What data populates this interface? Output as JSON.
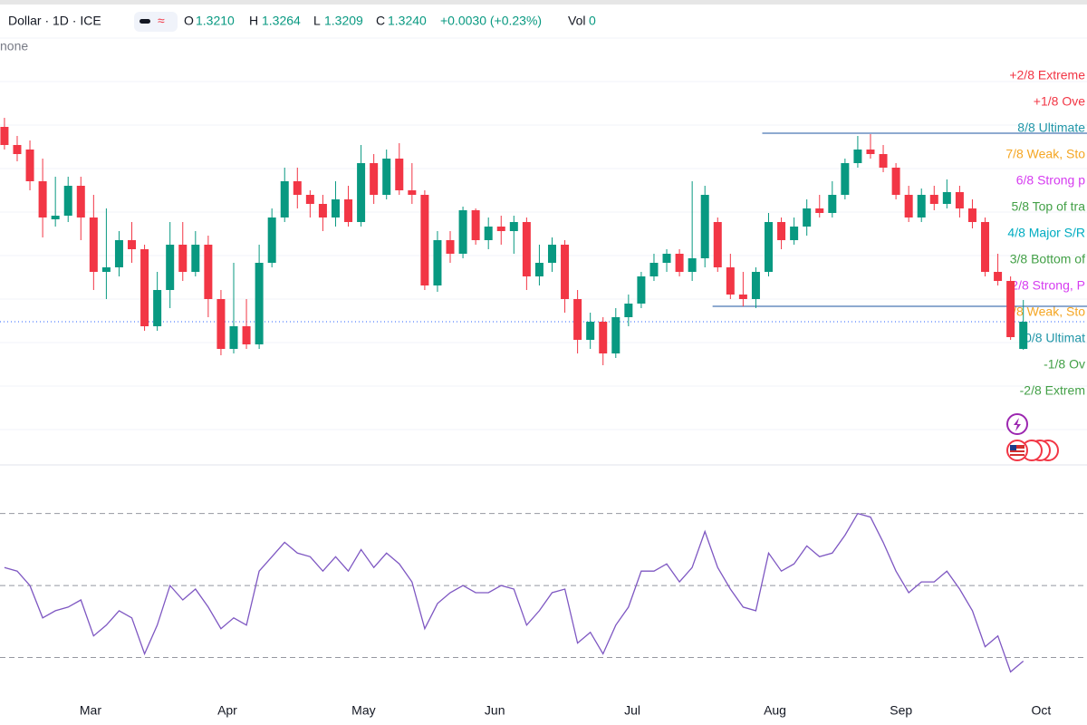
{
  "header": {
    "symbol": "Dollar · 1D · ICE",
    "o_label": "O",
    "o": "1.3210",
    "h_label": "H",
    "h": "1.3264",
    "l_label": "L",
    "l": "1.3209",
    "c_label": "C",
    "c": "1.3240",
    "change": "+0.0030 (+0.23%)",
    "vol_label": "Vol",
    "vol": "0",
    "sub": "none"
  },
  "chart_data": [
    {
      "type": "candlestick",
      "up_color": "#089981",
      "down_color": "#f23645",
      "xlim": [
        -0.35,
        85
      ],
      "ylim": [
        1.3083,
        1.3595
      ],
      "xticks": [
        {
          "value": 6.76,
          "label": "Mar"
        },
        {
          "value": 17.5,
          "label": "Apr"
        },
        {
          "value": 28.2,
          "label": "May"
        },
        {
          "value": 38.5,
          "label": "Jun"
        },
        {
          "value": 49.3,
          "label": "Jul"
        },
        {
          "value": 60.5,
          "label": "Aug"
        },
        {
          "value": 70.4,
          "label": "Sep"
        },
        {
          "value": 81.4,
          "label": "Oct"
        }
      ],
      "open": [
        1.3455,
        1.3435,
        1.343,
        1.3395,
        1.3353,
        1.3357,
        1.339,
        1.3355,
        1.3295,
        1.33,
        1.333,
        1.332,
        1.3235,
        1.3275,
        1.3325,
        1.3295,
        1.3325,
        1.3265,
        1.321,
        1.3235,
        1.3215,
        1.3305,
        1.3355,
        1.3395,
        1.338,
        1.337,
        1.3355,
        1.3375,
        1.335,
        1.3415,
        1.338,
        1.342,
        1.3385,
        1.338,
        1.328,
        1.333,
        1.3315,
        1.3363,
        1.333,
        1.3345,
        1.334,
        1.335,
        1.329,
        1.3305,
        1.3325,
        1.3265,
        1.322,
        1.324,
        1.3205,
        1.3245,
        1.326,
        1.329,
        1.3305,
        1.3315,
        1.3295,
        1.331,
        1.335,
        1.33,
        1.327,
        1.3265,
        1.3295,
        1.335,
        1.333,
        1.3345,
        1.3365,
        1.336,
        1.338,
        1.3415,
        1.343,
        1.3425,
        1.341,
        1.338,
        1.3355,
        1.338,
        1.337,
        1.3383,
        1.3365,
        1.335,
        1.3295,
        1.3285,
        1.321
      ],
      "high": [
        1.3465,
        1.3445,
        1.344,
        1.342,
        1.34,
        1.34,
        1.34,
        1.338,
        1.3365,
        1.334,
        1.335,
        1.3325,
        1.3295,
        1.335,
        1.335,
        1.334,
        1.3335,
        1.3275,
        1.3305,
        1.3265,
        1.3325,
        1.3365,
        1.341,
        1.341,
        1.3385,
        1.338,
        1.3395,
        1.339,
        1.3435,
        1.3425,
        1.343,
        1.3437,
        1.3415,
        1.3385,
        1.334,
        1.334,
        1.3367,
        1.3365,
        1.3355,
        1.3357,
        1.3357,
        1.3355,
        1.3325,
        1.3333,
        1.333,
        1.3275,
        1.325,
        1.3245,
        1.3255,
        1.327,
        1.3295,
        1.3315,
        1.332,
        1.332,
        1.3395,
        1.339,
        1.3355,
        1.3315,
        1.3295,
        1.33,
        1.336,
        1.3355,
        1.3355,
        1.3375,
        1.338,
        1.3395,
        1.342,
        1.3445,
        1.3447,
        1.3435,
        1.3415,
        1.339,
        1.3387,
        1.339,
        1.3397,
        1.339,
        1.3375,
        1.3355,
        1.3315,
        1.329,
        1.3264
      ],
      "low": [
        1.343,
        1.3417,
        1.3385,
        1.3333,
        1.3345,
        1.335,
        1.333,
        1.3275,
        1.3265,
        1.329,
        1.3305,
        1.323,
        1.323,
        1.3255,
        1.3285,
        1.329,
        1.3245,
        1.3203,
        1.3205,
        1.321,
        1.321,
        1.33,
        1.335,
        1.3365,
        1.3355,
        1.334,
        1.3345,
        1.3345,
        1.3345,
        1.337,
        1.3375,
        1.338,
        1.337,
        1.3275,
        1.3273,
        1.3305,
        1.331,
        1.3325,
        1.332,
        1.3325,
        1.3315,
        1.3275,
        1.328,
        1.3295,
        1.325,
        1.3205,
        1.321,
        1.3192,
        1.32,
        1.3235,
        1.3255,
        1.3285,
        1.3295,
        1.329,
        1.3285,
        1.33,
        1.3295,
        1.3265,
        1.3257,
        1.3255,
        1.329,
        1.332,
        1.3325,
        1.3335,
        1.3355,
        1.3355,
        1.3375,
        1.341,
        1.342,
        1.3405,
        1.3375,
        1.335,
        1.335,
        1.3363,
        1.3365,
        1.3355,
        1.3343,
        1.329,
        1.328,
        1.322,
        1.3209
      ],
      "close": [
        1.3435,
        1.3425,
        1.3395,
        1.3355,
        1.3357,
        1.339,
        1.3355,
        1.3295,
        1.33,
        1.333,
        1.332,
        1.3235,
        1.3275,
        1.3325,
        1.3295,
        1.3325,
        1.3265,
        1.321,
        1.3235,
        1.3215,
        1.3305,
        1.3355,
        1.3395,
        1.338,
        1.337,
        1.3355,
        1.3375,
        1.335,
        1.3415,
        1.338,
        1.342,
        1.3385,
        1.338,
        1.328,
        1.333,
        1.3315,
        1.3363,
        1.333,
        1.3345,
        1.334,
        1.335,
        1.329,
        1.3305,
        1.3325,
        1.3265,
        1.322,
        1.324,
        1.3205,
        1.3245,
        1.326,
        1.329,
        1.3305,
        1.3315,
        1.3295,
        1.331,
        1.338,
        1.33,
        1.327,
        1.3265,
        1.3295,
        1.335,
        1.333,
        1.3345,
        1.3365,
        1.336,
        1.338,
        1.3415,
        1.343,
        1.3425,
        1.341,
        1.338,
        1.3355,
        1.338,
        1.337,
        1.3383,
        1.3365,
        1.335,
        1.3295,
        1.3285,
        1.3223,
        1.324
      ],
      "last_price": 1.324,
      "last_price_color": "#2962ff",
      "hlines": [
        {
          "value": 1.3448,
          "start": 59.5,
          "color": "#1e56a0"
        },
        {
          "value": 1.3257,
          "start": 55.6,
          "color": "#1e56a0"
        }
      ],
      "murrey_levels": [
        {
          "label": "+2/8 Extreme",
          "value": 1.3511,
          "color": "#f23645"
        },
        {
          "label": "+1/8 Ove",
          "value": 1.3482,
          "color": "#f23645"
        },
        {
          "label": "8/8 Ultimate",
          "value": 1.3453,
          "color": "#2196a8"
        },
        {
          "label": "7/8 Weak, Sto",
          "value": 1.3424,
          "color": "#f5a623"
        },
        {
          "label": "6/8 Strong p",
          "value": 1.3395,
          "color": "#d63cf0"
        },
        {
          "label": "5/8 Top of tra",
          "value": 1.3366,
          "color": "#43a047"
        },
        {
          "label": "4/8 Major S/R",
          "value": 1.3337,
          "color": "#00acc1"
        },
        {
          "label": "3/8 Bottom of",
          "value": 1.3308,
          "color": "#43a047"
        },
        {
          "label": "2/8 Strong, P",
          "value": 1.3279,
          "color": "#d63cf0"
        },
        {
          "label": "1/8 Weak, Sto",
          "value": 1.325,
          "color": "#f5a623"
        },
        {
          "label": "0/8 Ultimat",
          "value": 1.3221,
          "color": "#2196a8"
        },
        {
          "label": "-1/8 Ov",
          "value": 1.3192,
          "color": "#43a047"
        },
        {
          "label": "-2/8 Extrem",
          "value": 1.3163,
          "color": "#43a047"
        }
      ]
    },
    {
      "type": "line",
      "color": "#7e57c2",
      "xlim": [
        -0.35,
        85
      ],
      "ylim": [
        18.8,
        83
      ],
      "levels": [
        70,
        50,
        30
      ],
      "values": [
        55,
        54,
        50,
        41,
        43,
        44,
        46,
        36,
        39,
        43,
        41,
        31,
        39,
        50,
        46,
        49,
        44,
        38,
        41,
        39,
        54,
        58,
        62,
        59,
        58,
        54,
        58,
        54,
        60,
        55,
        59,
        56,
        51,
        38,
        45,
        48,
        50,
        48,
        48,
        50,
        49,
        39,
        43,
        48,
        49,
        34,
        37,
        31,
        39,
        44,
        54,
        54,
        56,
        51,
        55,
        65,
        55,
        49,
        44,
        43,
        59,
        54,
        56,
        61,
        58,
        59,
        64,
        70,
        69,
        62,
        54,
        48,
        51,
        51,
        54,
        49,
        43,
        33,
        36,
        26,
        29
      ]
    }
  ]
}
